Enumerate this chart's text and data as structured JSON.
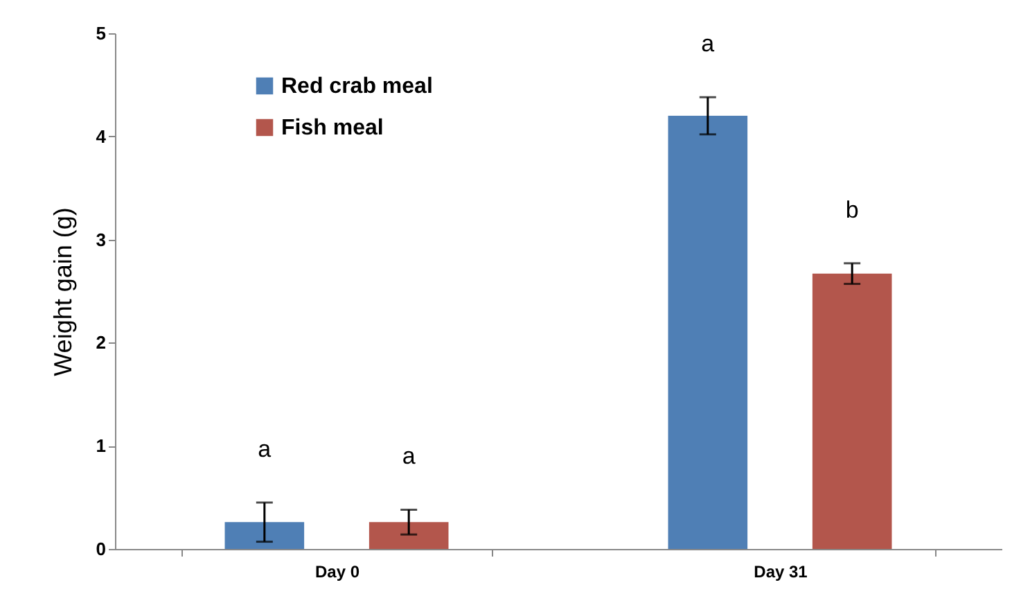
{
  "chart_data": {
    "type": "bar",
    "ylabel": "Weight gain (g)",
    "categories": [
      "Day 0",
      "Day 31"
    ],
    "series": [
      {
        "name": "Red crab meal",
        "color": "#4f7fb5",
        "values": [
          0.26,
          4.2
        ],
        "errors": [
          0.19,
          0.18
        ]
      },
      {
        "name": "Fish meal",
        "color": "#b3564c",
        "values": [
          0.26,
          2.67
        ],
        "errors": [
          0.12,
          0.1
        ]
      }
    ],
    "ylim": [
      0,
      5
    ],
    "yticks": [
      0,
      1,
      2,
      3,
      4,
      5
    ],
    "grid": false,
    "legend": "top left",
    "annotations": [
      "a",
      "a",
      "a",
      "b"
    ]
  }
}
